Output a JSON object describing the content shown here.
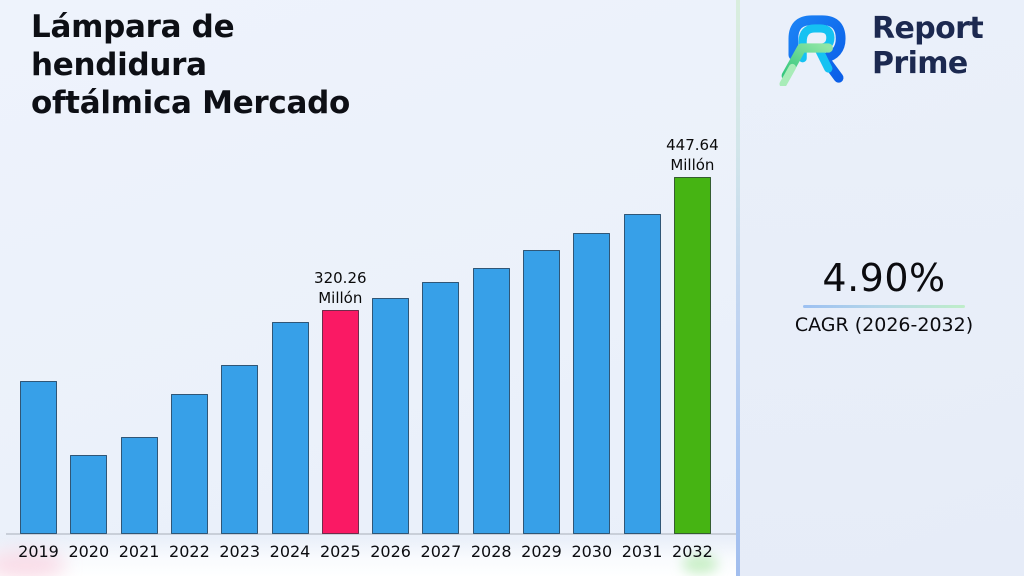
{
  "header": {
    "title_full": "Lámpara de hendidura oftálmica Mercado",
    "title_lines": [
      "Lámpara de",
      "hendidura",
      "oftálmica Mercado"
    ]
  },
  "logo": {
    "brand_line1": "Report",
    "brand_line2": "Prime",
    "colors": {
      "navy": "#1c2950",
      "blue": "#0d6ef2",
      "cyan": "#15c2f2",
      "green_dark": "#35c77e",
      "green_light": "#a8ecb8"
    }
  },
  "cagr": {
    "value": "4.90%",
    "label": "CAGR (2026-2032)",
    "underline_from": "#9cc0f2",
    "underline_to": "#bfeec9"
  },
  "chart_data": {
    "type": "bar",
    "title": "Lámpara de hendidura oftálmica Mercado",
    "unit": "Millón",
    "categories": [
      "2019",
      "2020",
      "2021",
      "2022",
      "2023",
      "2024",
      "2025",
      "2026",
      "2027",
      "2028",
      "2029",
      "2030",
      "2031",
      "2032"
    ],
    "values": [
      253,
      182,
      199,
      240,
      268,
      309,
      320.26,
      332,
      347,
      361,
      378,
      394,
      413,
      447.64
    ],
    "values_note": "2025 and 2032 are labeled on the chart; other values are estimated from bar heights",
    "labeled_points": [
      {
        "category": "2025",
        "lines": [
          "320.26",
          "Millón"
        ]
      },
      {
        "category": "2032",
        "lines": [
          "447.64",
          "Millón"
        ]
      }
    ],
    "bar_color": "#37a0e8",
    "highlight_colors": {
      "2025": "#fa1964",
      "2032": "#46b413"
    },
    "ylim": [
      106,
      447.64
    ],
    "grid": false,
    "legend": false,
    "y_axis_visible": false,
    "x_axis_visible": true
  }
}
